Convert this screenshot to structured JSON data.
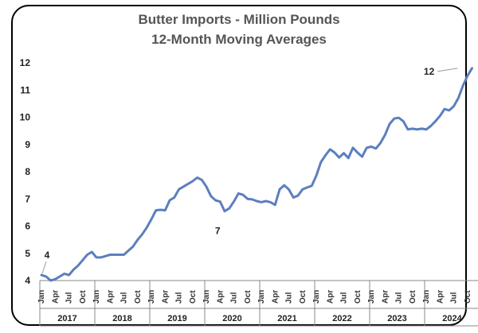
{
  "chart_data": {
    "type": "line",
    "title": "Butter Imports  - Million Pounds",
    "subtitle": "12-Month Moving Averages",
    "xlabel": "",
    "ylabel": "",
    "ylim": [
      4,
      12
    ],
    "yticks": [
      "4",
      "5",
      "6",
      "7",
      "8",
      "9",
      "10",
      "11",
      "12"
    ],
    "grid": false,
    "legend": "none",
    "line_color": "#5b7fbf",
    "month_tick_labels": [
      "Jan",
      "Apr",
      "Jul",
      "Oct"
    ],
    "year_labels": [
      "2017",
      "2018",
      "2019",
      "2020",
      "2021",
      "2022",
      "2023",
      "2024"
    ],
    "annotations": [
      {
        "label": "4",
        "date": "2017-01",
        "value": 4.2
      },
      {
        "label": "7",
        "date": "2020-04",
        "value": 6.5
      },
      {
        "label": "12",
        "date": "2024-08",
        "value": 11.8
      }
    ],
    "series": [
      {
        "start": "2017-01",
        "end": "2024-08",
        "frequency": "monthly",
        "values": [
          4.2,
          4.15,
          4.0,
          4.05,
          4.15,
          4.25,
          4.2,
          4.4,
          4.55,
          4.75,
          4.95,
          5.05,
          4.85,
          4.85,
          4.9,
          4.95,
          4.95,
          4.95,
          4.95,
          5.1,
          5.25,
          5.5,
          5.7,
          5.95,
          6.25,
          6.58,
          6.6,
          6.58,
          6.95,
          7.05,
          7.35,
          7.45,
          7.55,
          7.65,
          7.78,
          7.7,
          7.45,
          7.1,
          6.95,
          6.9,
          6.55,
          6.65,
          6.9,
          7.2,
          7.15,
          7.0,
          6.98,
          6.92,
          6.88,
          6.92,
          6.88,
          6.78,
          7.35,
          7.5,
          7.35,
          7.05,
          7.12,
          7.35,
          7.42,
          7.48,
          7.85,
          8.35,
          8.6,
          8.82,
          8.7,
          8.52,
          8.68,
          8.5,
          8.88,
          8.7,
          8.55,
          8.88,
          8.92,
          8.85,
          9.05,
          9.35,
          9.75,
          9.95,
          9.98,
          9.85,
          9.55,
          9.58,
          9.55,
          9.58,
          9.55,
          9.68,
          9.85,
          10.05,
          10.3,
          10.25,
          10.4,
          10.7,
          11.15,
          11.52,
          11.8
        ]
      }
    ]
  }
}
